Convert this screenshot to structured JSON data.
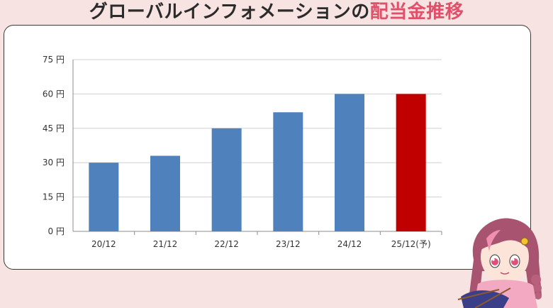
{
  "title": {
    "main": "グローバルインフォメーションの",
    "accent": "配当金推移"
  },
  "colors": {
    "background": "#f7e3e1",
    "bar_actual": "#4f81bd",
    "bar_forecast": "#c00000",
    "title_accent": "#e0506a"
  },
  "chart_data": {
    "type": "bar",
    "categories": [
      "20/12",
      "21/12",
      "22/12",
      "23/12",
      "24/12",
      "25/12(予)"
    ],
    "values": [
      30,
      33,
      45,
      52,
      60,
      60
    ],
    "forecast_index": 5,
    "yticks": [
      "0 円",
      "15 円",
      "30 円",
      "45 円",
      "60 円",
      "75 円"
    ],
    "ylim": [
      0,
      75
    ],
    "grid": true,
    "title": "",
    "xlabel": "",
    "ylabel": ""
  },
  "mascot": {
    "icon": "girl-knitting-illustration"
  }
}
